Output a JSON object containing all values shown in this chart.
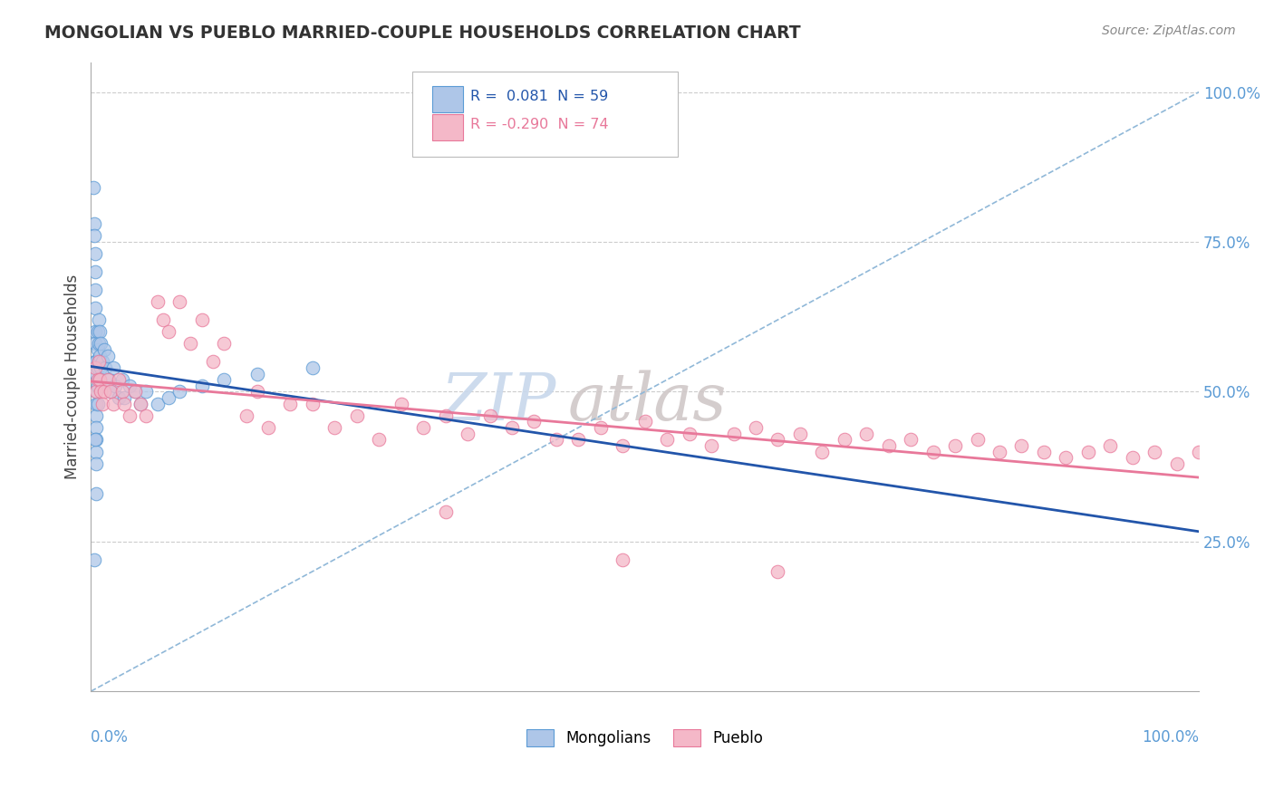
{
  "title": "MONGOLIAN VS PUEBLO MARRIED-COUPLE HOUSEHOLDS CORRELATION CHART",
  "source": "Source: ZipAtlas.com",
  "ylabel": "Married-couple Households",
  "ytick_labels": [
    "25.0%",
    "50.0%",
    "75.0%",
    "100.0%"
  ],
  "ytick_positions": [
    0.25,
    0.5,
    0.75,
    1.0
  ],
  "mongolian_color": "#aec6e8",
  "mongolian_edge": "#5b9bd5",
  "pueblo_color": "#f4b8c8",
  "pueblo_edge": "#e8789a",
  "mongolian_line_color": "#2255aa",
  "pueblo_line_color": "#e8789a",
  "trendline_dashed_color": "#90b8d8",
  "background_color": "#ffffff",
  "grid_color": "#cccccc",
  "tick_color": "#5b9bd5",
  "mong_x": [
    0.002,
    0.003,
    0.003,
    0.004,
    0.004,
    0.004,
    0.004,
    0.004,
    0.004,
    0.004,
    0.005,
    0.005,
    0.005,
    0.005,
    0.005,
    0.005,
    0.005,
    0.005,
    0.005,
    0.006,
    0.006,
    0.006,
    0.006,
    0.006,
    0.007,
    0.007,
    0.007,
    0.007,
    0.008,
    0.008,
    0.008,
    0.009,
    0.009,
    0.01,
    0.01,
    0.012,
    0.013,
    0.015,
    0.016,
    0.018,
    0.02,
    0.022,
    0.025,
    0.028,
    0.03,
    0.035,
    0.04,
    0.045,
    0.05,
    0.06,
    0.07,
    0.08,
    0.1,
    0.12,
    0.15,
    0.2,
    0.003,
    0.004,
    0.005
  ],
  "mong_y": [
    0.84,
    0.78,
    0.76,
    0.73,
    0.7,
    0.67,
    0.64,
    0.6,
    0.58,
    0.55,
    0.55,
    0.53,
    0.5,
    0.48,
    0.46,
    0.44,
    0.42,
    0.4,
    0.38,
    0.6,
    0.57,
    0.54,
    0.51,
    0.48,
    0.62,
    0.58,
    0.55,
    0.52,
    0.6,
    0.56,
    0.52,
    0.58,
    0.54,
    0.55,
    0.51,
    0.57,
    0.54,
    0.56,
    0.52,
    0.5,
    0.54,
    0.51,
    0.49,
    0.52,
    0.49,
    0.51,
    0.5,
    0.48,
    0.5,
    0.48,
    0.49,
    0.5,
    0.51,
    0.52,
    0.53,
    0.54,
    0.22,
    0.42,
    0.33
  ],
  "pueblo_x": [
    0.004,
    0.005,
    0.006,
    0.007,
    0.008,
    0.009,
    0.01,
    0.012,
    0.015,
    0.018,
    0.02,
    0.025,
    0.028,
    0.03,
    0.035,
    0.04,
    0.045,
    0.05,
    0.06,
    0.065,
    0.07,
    0.08,
    0.09,
    0.1,
    0.11,
    0.12,
    0.14,
    0.15,
    0.16,
    0.18,
    0.2,
    0.22,
    0.24,
    0.26,
    0.28,
    0.3,
    0.32,
    0.34,
    0.36,
    0.38,
    0.4,
    0.42,
    0.44,
    0.46,
    0.48,
    0.5,
    0.52,
    0.54,
    0.56,
    0.58,
    0.6,
    0.62,
    0.64,
    0.66,
    0.68,
    0.7,
    0.72,
    0.74,
    0.76,
    0.78,
    0.8,
    0.82,
    0.84,
    0.86,
    0.88,
    0.9,
    0.92,
    0.94,
    0.96,
    0.98,
    1.0,
    0.32,
    0.48,
    0.62
  ],
  "pueblo_y": [
    0.54,
    0.5,
    0.52,
    0.55,
    0.52,
    0.5,
    0.48,
    0.5,
    0.52,
    0.5,
    0.48,
    0.52,
    0.5,
    0.48,
    0.46,
    0.5,
    0.48,
    0.46,
    0.65,
    0.62,
    0.6,
    0.65,
    0.58,
    0.62,
    0.55,
    0.58,
    0.46,
    0.5,
    0.44,
    0.48,
    0.48,
    0.44,
    0.46,
    0.42,
    0.48,
    0.44,
    0.46,
    0.43,
    0.46,
    0.44,
    0.45,
    0.42,
    0.42,
    0.44,
    0.41,
    0.45,
    0.42,
    0.43,
    0.41,
    0.43,
    0.44,
    0.42,
    0.43,
    0.4,
    0.42,
    0.43,
    0.41,
    0.42,
    0.4,
    0.41,
    0.42,
    0.4,
    0.41,
    0.4,
    0.39,
    0.4,
    0.41,
    0.39,
    0.4,
    0.38,
    0.4,
    0.3,
    0.22,
    0.2
  ],
  "watermark_zip": "ZIP",
  "watermark_atlas": "atlas",
  "watermark_zip_color": "#c8d8ec",
  "watermark_atlas_color": "#d0c8c8"
}
